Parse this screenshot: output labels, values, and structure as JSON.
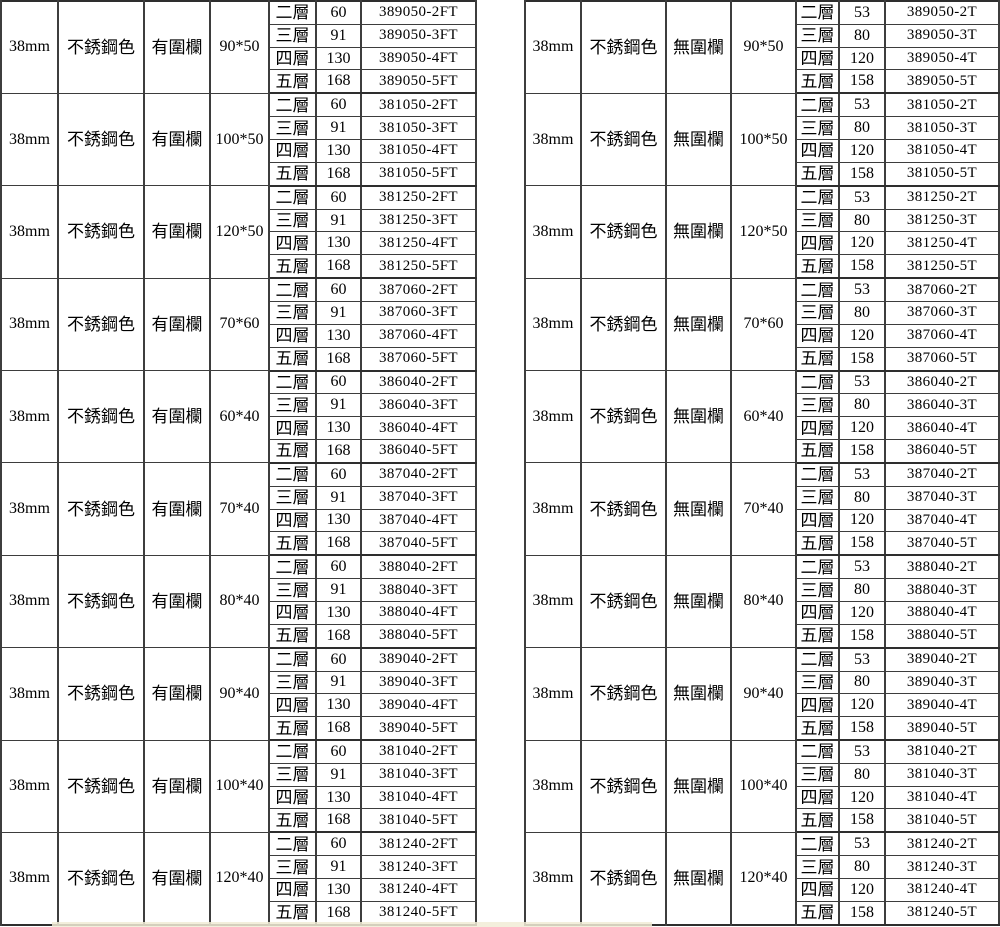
{
  "page": {
    "background": "#ffffff",
    "border_color": "#3d3d3d",
    "text_color": "#000000",
    "bottom_tint_color": "#f1ecd6"
  },
  "left_table": {
    "size_label": "38mm",
    "color_label": "不銹鋼色",
    "fence_label": "有圍欄",
    "tier_labels": [
      "二層",
      "三層",
      "四層",
      "五層"
    ],
    "prices": [
      "60",
      "91",
      "130",
      "168"
    ],
    "groups": [
      {
        "dims": "90*50",
        "rows": [
          [
            "二層",
            "60",
            "389050-2FT"
          ],
          [
            "三層",
            "91",
            "389050-3FT"
          ],
          [
            "四層",
            "130",
            "389050-4FT"
          ],
          [
            "五層",
            "168",
            "389050-5FT"
          ]
        ]
      },
      {
        "dims": "100*50",
        "rows": [
          [
            "二層",
            "60",
            "381050-2FT"
          ],
          [
            "三層",
            "91",
            "381050-3FT"
          ],
          [
            "四層",
            "130",
            "381050-4FT"
          ],
          [
            "五層",
            "168",
            "381050-5FT"
          ]
        ]
      },
      {
        "dims": "120*50",
        "rows": [
          [
            "二層",
            "60",
            "381250-2FT"
          ],
          [
            "三層",
            "91",
            "381250-3FT"
          ],
          [
            "四層",
            "130",
            "381250-4FT"
          ],
          [
            "五層",
            "168",
            "381250-5FT"
          ]
        ]
      },
      {
        "dims": "70*60",
        "rows": [
          [
            "二層",
            "60",
            "387060-2FT"
          ],
          [
            "三層",
            "91",
            "387060-3FT"
          ],
          [
            "四層",
            "130",
            "387060-4FT"
          ],
          [
            "五層",
            "168",
            "387060-5FT"
          ]
        ]
      },
      {
        "dims": "60*40",
        "rows": [
          [
            "二層",
            "60",
            "386040-2FT"
          ],
          [
            "三層",
            "91",
            "386040-3FT"
          ],
          [
            "四層",
            "130",
            "386040-4FT"
          ],
          [
            "五層",
            "168",
            "386040-5FT"
          ]
        ]
      },
      {
        "dims": "70*40",
        "rows": [
          [
            "二層",
            "60",
            "387040-2FT"
          ],
          [
            "三層",
            "91",
            "387040-3FT"
          ],
          [
            "四層",
            "130",
            "387040-4FT"
          ],
          [
            "五層",
            "168",
            "387040-5FT"
          ]
        ]
      },
      {
        "dims": "80*40",
        "rows": [
          [
            "二層",
            "60",
            "388040-2FT"
          ],
          [
            "三層",
            "91",
            "388040-3FT"
          ],
          [
            "四層",
            "130",
            "388040-4FT"
          ],
          [
            "五層",
            "168",
            "388040-5FT"
          ]
        ]
      },
      {
        "dims": "90*40",
        "rows": [
          [
            "二層",
            "60",
            "389040-2FT"
          ],
          [
            "三層",
            "91",
            "389040-3FT"
          ],
          [
            "四層",
            "130",
            "389040-4FT"
          ],
          [
            "五層",
            "168",
            "389040-5FT"
          ]
        ]
      },
      {
        "dims": "100*40",
        "rows": [
          [
            "二層",
            "60",
            "381040-2FT"
          ],
          [
            "三層",
            "91",
            "381040-3FT"
          ],
          [
            "四層",
            "130",
            "381040-4FT"
          ],
          [
            "五層",
            "168",
            "381040-5FT"
          ]
        ]
      },
      {
        "dims": "120*40",
        "rows": [
          [
            "二層",
            "60",
            "381240-2FT"
          ],
          [
            "三層",
            "91",
            "381240-3FT"
          ],
          [
            "四層",
            "130",
            "381240-4FT"
          ],
          [
            "五層",
            "168",
            "381240-5FT"
          ]
        ]
      }
    ]
  },
  "right_table": {
    "size_label": "38mm",
    "color_label": "不銹鋼色",
    "fence_label": "無圍欄",
    "tier_labels": [
      "二層",
      "三層",
      "四層",
      "五層"
    ],
    "prices": [
      "53",
      "80",
      "120",
      "158"
    ],
    "groups": [
      {
        "dims": "90*50",
        "rows": [
          [
            "二層",
            "53",
            "389050-2T"
          ],
          [
            "三層",
            "80",
            "389050-3T"
          ],
          [
            "四層",
            "120",
            "389050-4T"
          ],
          [
            "五層",
            "158",
            "389050-5T"
          ]
        ]
      },
      {
        "dims": "100*50",
        "rows": [
          [
            "二層",
            "53",
            "381050-2T"
          ],
          [
            "三層",
            "80",
            "381050-3T"
          ],
          [
            "四層",
            "120",
            "381050-4T"
          ],
          [
            "五層",
            "158",
            "381050-5T"
          ]
        ]
      },
      {
        "dims": "120*50",
        "rows": [
          [
            "二層",
            "53",
            "381250-2T"
          ],
          [
            "三層",
            "80",
            "381250-3T"
          ],
          [
            "四層",
            "120",
            "381250-4T"
          ],
          [
            "五層",
            "158",
            "381250-5T"
          ]
        ]
      },
      {
        "dims": "70*60",
        "rows": [
          [
            "二層",
            "53",
            "387060-2T"
          ],
          [
            "三層",
            "80",
            "387060-3T"
          ],
          [
            "四層",
            "120",
            "387060-4T"
          ],
          [
            "五層",
            "158",
            "387060-5T"
          ]
        ]
      },
      {
        "dims": "60*40",
        "rows": [
          [
            "二層",
            "53",
            "386040-2T"
          ],
          [
            "三層",
            "80",
            "386040-3T"
          ],
          [
            "四層",
            "120",
            "386040-4T"
          ],
          [
            "五層",
            "158",
            "386040-5T"
          ]
        ]
      },
      {
        "dims": "70*40",
        "rows": [
          [
            "二層",
            "53",
            "387040-2T"
          ],
          [
            "三層",
            "80",
            "387040-3T"
          ],
          [
            "四層",
            "120",
            "387040-4T"
          ],
          [
            "五層",
            "158",
            "387040-5T"
          ]
        ]
      },
      {
        "dims": "80*40",
        "rows": [
          [
            "二層",
            "53",
            "388040-2T"
          ],
          [
            "三層",
            "80",
            "388040-3T"
          ],
          [
            "四層",
            "120",
            "388040-4T"
          ],
          [
            "五層",
            "158",
            "388040-5T"
          ]
        ]
      },
      {
        "dims": "90*40",
        "rows": [
          [
            "二層",
            "53",
            "389040-2T"
          ],
          [
            "三層",
            "80",
            "389040-3T"
          ],
          [
            "四層",
            "120",
            "389040-4T"
          ],
          [
            "五層",
            "158",
            "389040-5T"
          ]
        ]
      },
      {
        "dims": "100*40",
        "rows": [
          [
            "二層",
            "53",
            "381040-2T"
          ],
          [
            "三層",
            "80",
            "381040-3T"
          ],
          [
            "四層",
            "120",
            "381040-4T"
          ],
          [
            "五層",
            "158",
            "381040-5T"
          ]
        ]
      },
      {
        "dims": "120*40",
        "rows": [
          [
            "二層",
            "53",
            "381240-2T"
          ],
          [
            "三層",
            "80",
            "381240-3T"
          ],
          [
            "四層",
            "120",
            "381240-4T"
          ],
          [
            "五層",
            "158",
            "381240-5T"
          ]
        ]
      }
    ]
  }
}
